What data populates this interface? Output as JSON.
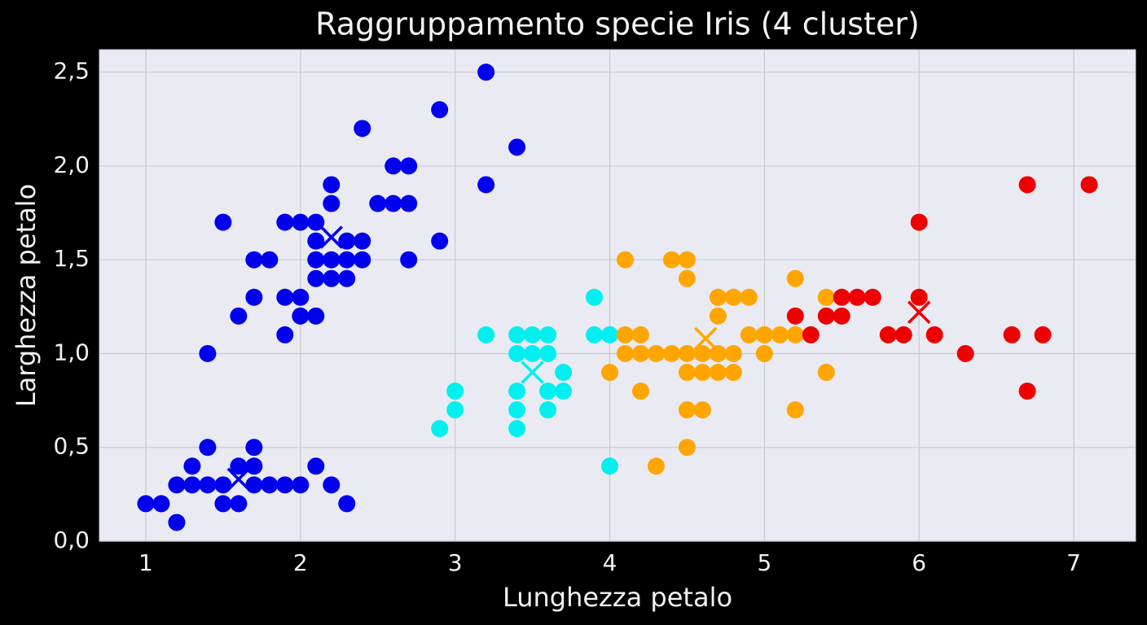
{
  "chart_data": {
    "type": "scatter",
    "title": "Raggruppamento specie Iris (4 cluster)",
    "x_label": "Lunghezza petalo",
    "y_label": "Larghezza petalo",
    "xlim": [
      0.7,
      7.4
    ],
    "ylim": [
      0,
      2.62
    ],
    "xticks": [
      1,
      2,
      3,
      4,
      5,
      6,
      7
    ],
    "yticks": [
      {
        "value": 0,
        "label": "0,0"
      },
      {
        "value": 0.5,
        "label": "0,5"
      },
      {
        "value": 1,
        "label": "1,0"
      },
      {
        "value": 1.5,
        "label": "1,5"
      },
      {
        "value": 2,
        "label": "2,0"
      },
      {
        "value": 2.5,
        "label": "2,5"
      }
    ],
    "grid": true,
    "series": [
      {
        "color": "#0000ee",
        "x": [
          1.0,
          1.1,
          1.2,
          1.2,
          1.3,
          1.3,
          1.4,
          1.4,
          1.5,
          1.5,
          1.6,
          1.6,
          1.7,
          1.7,
          1.7,
          1.8,
          1.9,
          2.0,
          2.1,
          2.2,
          2.3,
          1.4,
          1.5,
          1.6,
          1.7,
          1.7,
          1.8,
          1.9,
          1.9,
          1.9,
          2.0,
          2.0,
          2.0,
          2.1,
          2.1,
          2.1,
          2.1,
          2.1,
          2.2,
          2.2,
          2.2,
          2.2,
          2.3,
          2.3,
          2.3,
          2.4,
          2.4,
          2.4,
          2.5,
          2.6,
          2.6,
          2.7,
          2.7,
          2.7,
          2.9,
          2.9,
          3.2,
          3.2,
          3.4
        ],
        "y": [
          0.2,
          0.2,
          0.1,
          0.3,
          0.3,
          0.4,
          0.3,
          0.5,
          0.3,
          0.2,
          0.2,
          0.4,
          0.4,
          0.3,
          0.5,
          0.3,
          0.3,
          0.3,
          0.4,
          0.3,
          0.2,
          1.0,
          1.7,
          1.2,
          1.5,
          1.3,
          1.5,
          1.7,
          1.3,
          1.1,
          1.7,
          1.3,
          1.2,
          1.7,
          1.2,
          1.6,
          1.5,
          1.4,
          1.9,
          1.8,
          1.5,
          1.4,
          1.6,
          1.5,
          1.4,
          1.6,
          1.5,
          2.2,
          1.8,
          1.8,
          2.0,
          2.0,
          1.8,
          1.5,
          2.3,
          1.6,
          2.5,
          1.9,
          2.1
        ],
        "centroids": {
          "x": [
            1.6,
            2.2
          ],
          "y": [
            0.33,
            1.62
          ]
        }
      },
      {
        "color": "#00f0f0",
        "x": [
          2.9,
          3.0,
          3.0,
          3.2,
          3.4,
          3.4,
          3.4,
          3.4,
          3.4,
          3.5,
          3.5,
          3.6,
          3.6,
          3.6,
          3.6,
          3.7,
          3.7,
          3.9,
          3.9,
          4.0,
          4.0
        ],
        "y": [
          0.6,
          0.8,
          0.7,
          1.1,
          1.1,
          1.0,
          0.8,
          0.7,
          0.6,
          1.1,
          1.0,
          1.1,
          1.0,
          0.8,
          0.7,
          0.9,
          0.8,
          1.3,
          1.1,
          1.1,
          0.4
        ],
        "centroids": {
          "x": [
            3.5
          ],
          "y": [
            0.9
          ]
        }
      },
      {
        "color": "#ffa500",
        "x": [
          4.0,
          4.1,
          4.1,
          4.1,
          4.2,
          4.2,
          4.2,
          4.3,
          4.3,
          4.4,
          4.4,
          4.5,
          4.5,
          4.5,
          4.5,
          4.5,
          4.5,
          4.6,
          4.6,
          4.6,
          4.7,
          4.7,
          4.7,
          4.7,
          4.8,
          4.8,
          4.8,
          4.9,
          4.9,
          5.0,
          5.0,
          5.1,
          5.2,
          5.2,
          5.2,
          5.4,
          5.4
        ],
        "y": [
          0.9,
          1.5,
          1.1,
          1.0,
          1.1,
          1.0,
          0.8,
          1.0,
          0.4,
          1.5,
          1.0,
          1.5,
          1.4,
          1.0,
          0.9,
          0.7,
          0.5,
          1.0,
          0.9,
          0.7,
          1.3,
          1.2,
          1.0,
          0.9,
          1.3,
          1.0,
          0.9,
          1.3,
          1.1,
          1.1,
          1.0,
          1.1,
          1.4,
          1.1,
          0.7,
          1.3,
          0.9
        ],
        "centroids": {
          "x": [
            4.62
          ],
          "y": [
            1.08
          ]
        }
      },
      {
        "color": "#ee0000",
        "x": [
          5.2,
          5.3,
          5.4,
          5.5,
          5.5,
          5.6,
          5.7,
          5.8,
          5.9,
          6.0,
          6.0,
          6.1,
          6.3,
          6.6,
          6.7,
          6.7,
          6.8,
          7.1
        ],
        "y": [
          1.2,
          1.1,
          1.2,
          1.2,
          1.3,
          1.3,
          1.3,
          1.1,
          1.1,
          1.7,
          1.3,
          1.1,
          1.0,
          1.1,
          1.9,
          0.8,
          1.1,
          1.9
        ],
        "centroids": {
          "x": [
            6.0
          ],
          "y": [
            1.22
          ]
        }
      }
    ]
  }
}
